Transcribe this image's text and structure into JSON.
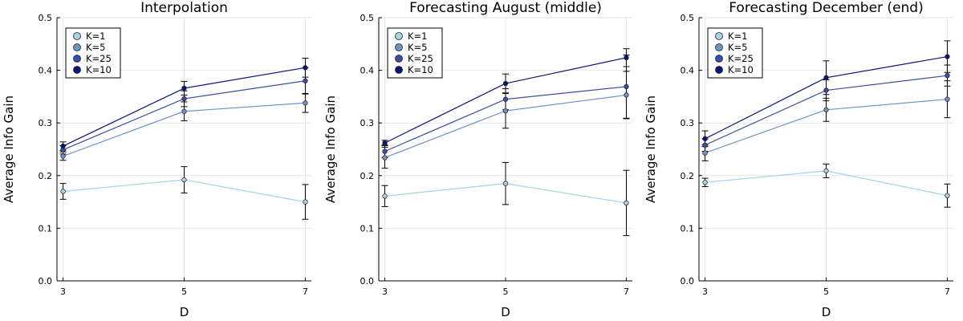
{
  "chart_data": [
    {
      "type": "line",
      "title": "Interpolation",
      "xlabel": "D",
      "ylabel": "Average Info Gain",
      "x": [
        3,
        5,
        7
      ],
      "xlim": [
        2.9,
        7.1
      ],
      "ylim": [
        0,
        0.5
      ],
      "xticks": [
        "3",
        "5",
        "7"
      ],
      "yticks": [
        "0.0",
        "0.1",
        "0.2",
        "0.3",
        "0.4",
        "0.5"
      ],
      "grid": true,
      "legend_position": "top-left",
      "series": [
        {
          "name": "K=1",
          "color": "#a6d2e6",
          "values": [
            0.17,
            0.192,
            0.15
          ],
          "errors": [
            0.015,
            0.025,
            0.033
          ]
        },
        {
          "name": "K=5",
          "color": "#6f93c9",
          "values": [
            0.237,
            0.322,
            0.338
          ],
          "errors": [
            0.008,
            0.018,
            0.018
          ]
        },
        {
          "name": "K=25",
          "color": "#3b4ea3",
          "values": [
            0.249,
            0.346,
            0.38
          ],
          "errors": [
            0.008,
            0.015,
            0.025
          ]
        },
        {
          "name": "K=10",
          "color": "#0a1278",
          "values": [
            0.256,
            0.366,
            0.405
          ],
          "errors": [
            0.008,
            0.013,
            0.018
          ]
        }
      ]
    },
    {
      "type": "line",
      "title": "Forecasting August (middle)",
      "xlabel": "D",
      "ylabel": "Average Info Gain",
      "x": [
        3,
        5,
        7
      ],
      "xlim": [
        2.9,
        7.1
      ],
      "ylim": [
        0,
        0.5
      ],
      "xticks": [
        "3",
        "5",
        "7"
      ],
      "yticks": [
        "0.0",
        "0.1",
        "0.2",
        "0.3",
        "0.4",
        "0.5"
      ],
      "grid": true,
      "legend_position": "top-left",
      "series": [
        {
          "name": "K=1",
          "color": "#a6d2e6",
          "values": [
            0.161,
            0.185,
            0.148
          ],
          "errors": [
            0.02,
            0.04,
            0.062
          ]
        },
        {
          "name": "K=5",
          "color": "#6f93c9",
          "values": [
            0.234,
            0.323,
            0.353
          ],
          "errors": [
            0.02,
            0.033,
            0.045
          ]
        },
        {
          "name": "K=25",
          "color": "#3b4ea3",
          "values": [
            0.246,
            0.345,
            0.369
          ],
          "errors": [
            0.012,
            0.02,
            0.06
          ]
        },
        {
          "name": "K=10",
          "color": "#0a1278",
          "values": [
            0.262,
            0.375,
            0.424
          ],
          "errors": [
            0.005,
            0.018,
            0.017
          ]
        }
      ]
    },
    {
      "type": "line",
      "title": "Forecasting December (end)",
      "xlabel": "D",
      "ylabel": "Average Info Gain",
      "x": [
        3,
        5,
        7
      ],
      "xlim": [
        2.9,
        7.1
      ],
      "ylim": [
        0,
        0.5
      ],
      "xticks": [
        "3",
        "5",
        "7"
      ],
      "yticks": [
        "0.0",
        "0.1",
        "0.2",
        "0.3",
        "0.4",
        "0.5"
      ],
      "grid": true,
      "legend_position": "top-left",
      "series": [
        {
          "name": "K=1",
          "color": "#a6d2e6",
          "values": [
            0.187,
            0.209,
            0.162
          ],
          "errors": [
            0.008,
            0.013,
            0.022
          ]
        },
        {
          "name": "K=5",
          "color": "#6f93c9",
          "values": [
            0.243,
            0.325,
            0.345
          ],
          "errors": [
            0.015,
            0.022,
            0.035
          ]
        },
        {
          "name": "K=25",
          "color": "#3b4ea3",
          "values": [
            0.258,
            0.362,
            0.39
          ],
          "errors": [
            0.012,
            0.02,
            0.02
          ]
        },
        {
          "name": "K=10",
          "color": "#0a1278",
          "values": [
            0.27,
            0.386,
            0.426
          ],
          "errors": [
            0.015,
            0.032,
            0.03
          ]
        }
      ]
    }
  ]
}
